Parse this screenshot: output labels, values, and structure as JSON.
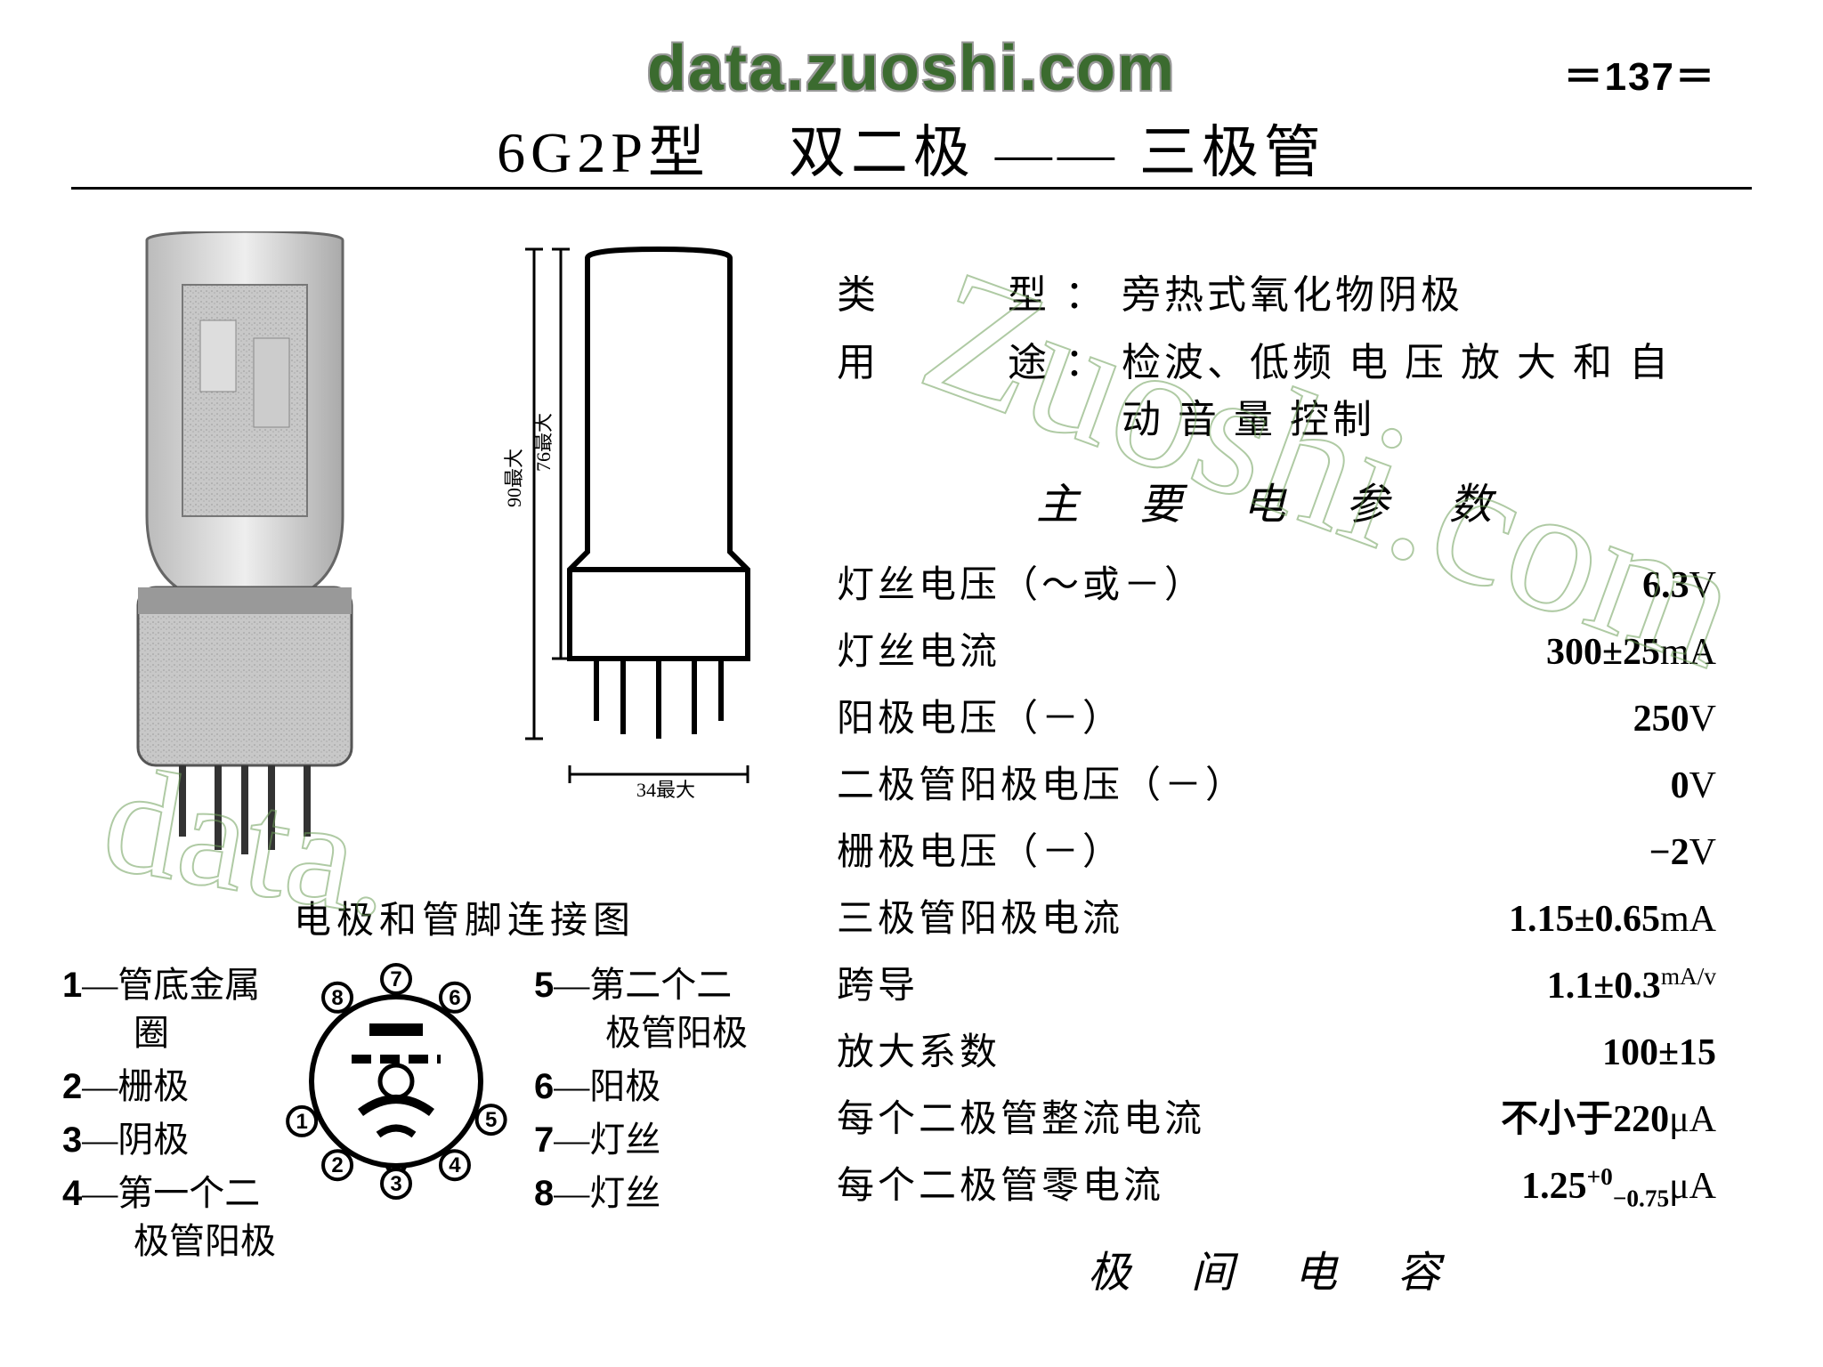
{
  "watermark": "data.zuoshi.com",
  "page_num": "＝137＝",
  "title": {
    "model": "6G2P",
    "model_suffix": "型",
    "name": "双二极 —— 三极管"
  },
  "info": [
    {
      "label": "类　　型：",
      "value": "旁热式氧化物阴极"
    },
    {
      "label": "用　　途：",
      "value": "检波、低频 电 压 放 大 和 自 动 音 量 控制"
    }
  ],
  "section1": "主 要 电 参 数",
  "params": [
    {
      "label": "灯丝电压（～或－）",
      "value": "6.3",
      "unit": "V"
    },
    {
      "label": "灯丝电流",
      "value": "300±25",
      "unit": "mA"
    },
    {
      "label": "阳极电压（－）",
      "value": "250",
      "unit": "V"
    },
    {
      "label": "二极管阳极电压（－）",
      "value": "0",
      "unit": "V"
    },
    {
      "label": "栅极电压（－）",
      "value": "−2",
      "unit": "V"
    },
    {
      "label": "三极管阳极电流",
      "value": "1.15±0.65",
      "unit": "mA"
    },
    {
      "label": "跨导",
      "value": "1.1±0.3",
      "unit": "mA/v",
      "unit_sup": true
    },
    {
      "label": "放大系数",
      "value": "100±15",
      "unit": ""
    },
    {
      "label": "每个二极管整流电流",
      "value": "不小于220",
      "unit": "μA"
    },
    {
      "label": "每个二极管零电流",
      "value_html": "1.25<span class='sup'>+0</span><span class='sub'>−0.75</span>",
      "unit": "μA"
    }
  ],
  "section2": "极 间 电 容",
  "pin_title": "电极和管脚连接图",
  "pins_left": [
    "1—管底金属\n　　圈",
    "2—栅极",
    "3—阴极",
    "4—第一个二\n　　极管阳极"
  ],
  "pins_right": [
    "5—第二个二\n　　极管阳极",
    "6—阳极",
    "7—灯丝",
    "8—灯丝"
  ],
  "outline_dims": {
    "height_total": "90最大",
    "height_bulb": "76最大",
    "width": "34最大"
  },
  "colors": {
    "ink": "#000000",
    "watermark_green": "#3b6b2f",
    "watermark_outline": "#6fa05a",
    "bg": "#ffffff"
  },
  "pin_diagram": {
    "numbers": [
      "1",
      "2",
      "3",
      "4",
      "5",
      "6",
      "7",
      "8"
    ],
    "positions_deg": [
      247,
      215,
      180,
      145,
      112,
      35,
      0,
      325
    ]
  }
}
